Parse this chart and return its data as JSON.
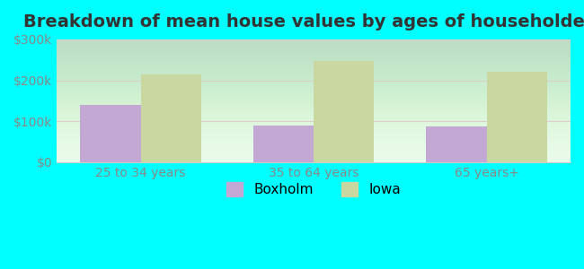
{
  "title": "Breakdown of mean house values by ages of householders",
  "categories": [
    "25 to 34 years",
    "35 to 64 years",
    "65 years+"
  ],
  "boxholm_values": [
    140000,
    90000,
    88000
  ],
  "iowa_values": [
    215000,
    248000,
    222000
  ],
  "ylim": [
    0,
    300000
  ],
  "yticks": [
    0,
    100000,
    200000,
    300000
  ],
  "ytick_labels": [
    "$0",
    "$100k",
    "$200k",
    "$300k"
  ],
  "boxholm_color": "#c4a8d4",
  "iowa_color": "#c8d8a0",
  "background_color": "#e8fce8",
  "outer_background": "#00ffff",
  "bar_width": 0.35,
  "legend_labels": [
    "Boxholm",
    "Iowa"
  ],
  "title_fontsize": 14,
  "tick_fontsize": 10,
  "legend_fontsize": 11
}
